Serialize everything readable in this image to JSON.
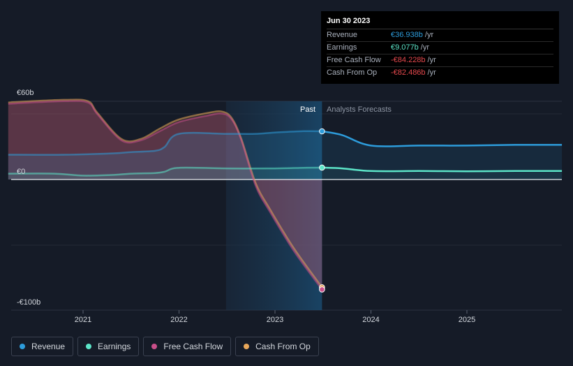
{
  "tooltip": {
    "date": "Jun 30 2023",
    "rows": [
      {
        "label": "Revenue",
        "value": "€36.938b",
        "unit": "/yr",
        "color": "#2d9cdb"
      },
      {
        "label": "Earnings",
        "value": "€9.077b",
        "unit": "/yr",
        "color": "#5ce5c8"
      },
      {
        "label": "Free Cash Flow",
        "value": "-€84.228b",
        "unit": "/yr",
        "color": "#e5484d"
      },
      {
        "label": "Cash From Op",
        "value": "-€82.486b",
        "unit": "/yr",
        "color": "#e5484d"
      }
    ]
  },
  "labels": {
    "past": "Past",
    "forecast": "Analysts Forecasts"
  },
  "legend": [
    {
      "label": "Revenue",
      "color": "#2d9cdb"
    },
    {
      "label": "Earnings",
      "color": "#5ce5c8"
    },
    {
      "label": "Free Cash Flow",
      "color": "#c94f8a"
    },
    {
      "label": "Cash From Op",
      "color": "#e8a75a"
    }
  ],
  "chart_data": {
    "type": "line",
    "y_tick_labels": [
      "€60b",
      "€0",
      "-€100b"
    ],
    "y_ticks": [
      60,
      0,
      -100
    ],
    "ylim": [
      -100,
      60
    ],
    "x_tick_labels": [
      "2021",
      "2022",
      "2023",
      "2024",
      "2025"
    ],
    "x_ticks": [
      2021,
      2022,
      2023,
      2024,
      2025
    ],
    "xlim": [
      2020.22,
      2025.99
    ],
    "past_region": [
      2022.49,
      2023.49
    ],
    "series": [
      {
        "name": "Revenue",
        "color": "#2d9cdb",
        "x": [
          2020.22,
          2020.8,
          2021.3,
          2021.5,
          2021.75,
          2021.85,
          2022.0,
          2022.5,
          2022.8,
          2023.0,
          2023.3,
          2023.49,
          2023.7,
          2024.0,
          2024.5,
          2025.0,
          2025.5,
          2025.99
        ],
        "y": [
          19,
          19,
          20,
          21,
          22,
          25,
          35,
          35,
          35,
          36,
          37,
          36.9,
          34,
          26,
          26,
          26,
          26.5,
          26.5
        ]
      },
      {
        "name": "Earnings",
        "color": "#5ce5c8",
        "x": [
          2020.22,
          2020.7,
          2021.0,
          2021.3,
          2021.5,
          2021.75,
          2021.85,
          2022.0,
          2022.5,
          2023.0,
          2023.3,
          2023.49,
          2023.7,
          2024.0,
          2024.5,
          2025.0,
          2025.5,
          2025.99
        ],
        "y": [
          4.5,
          4.5,
          3,
          3.5,
          4.5,
          5,
          6,
          9,
          8.5,
          8.5,
          9,
          9.1,
          8.5,
          6.5,
          6.5,
          6.3,
          6.5,
          6.5
        ]
      },
      {
        "name": "Free Cash Flow",
        "color": "#c94f8a",
        "x": [
          2020.22,
          2020.8,
          2021.05,
          2021.15,
          2021.4,
          2021.6,
          2021.8,
          2022.0,
          2022.3,
          2022.45,
          2022.55,
          2022.65,
          2022.8,
          2022.95,
          2023.2,
          2023.49
        ],
        "y": [
          58,
          60,
          59,
          50,
          30,
          30,
          37,
          44,
          49,
          50.5,
          46,
          30,
          -5,
          -25,
          -55,
          -84.2
        ]
      },
      {
        "name": "Cash From Op",
        "color": "#e8a75a",
        "x": [
          2020.22,
          2020.8,
          2021.05,
          2021.15,
          2021.4,
          2021.6,
          2021.8,
          2022.0,
          2022.3,
          2022.45,
          2022.55,
          2022.65,
          2022.8,
          2022.95,
          2023.2,
          2023.49
        ],
        "y": [
          59,
          61,
          60,
          51,
          31,
          31,
          39,
          46,
          51,
          52,
          47,
          31,
          -3,
          -23,
          -53,
          -82.5
        ]
      }
    ]
  }
}
